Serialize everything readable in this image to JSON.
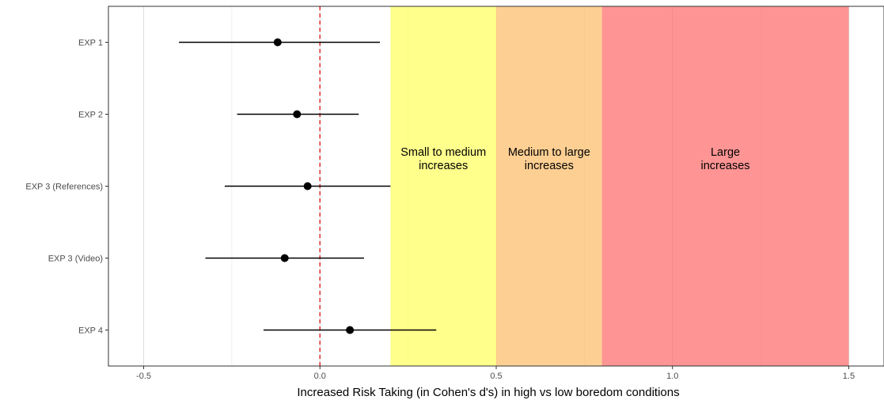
{
  "chart_data": {
    "type": "forest",
    "title": "",
    "xlabel": "Increased Risk Taking (in Cohen's d's) in high vs low boredom conditions",
    "ylabel": "",
    "xlim": [
      -0.6,
      1.6
    ],
    "x_ticks": [
      -0.5,
      0.0,
      0.5,
      1.0,
      1.5
    ],
    "x_tick_labels": [
      "-0.5",
      "0.0",
      "0.5",
      "1.0",
      "1.5"
    ],
    "grid": "vertical",
    "reference_line": {
      "x": 0,
      "color": "#dd2222",
      "style": "dashed"
    },
    "categories": [
      "EXP 1",
      "EXP 2",
      "EXP 3 (References)",
      "EXP 3 (Video)",
      "EXP 4"
    ],
    "points": [
      {
        "label": "EXP 1",
        "estimate": -0.12,
        "lower": -0.4,
        "upper": 0.17
      },
      {
        "label": "EXP 2",
        "estimate": -0.065,
        "lower": -0.235,
        "upper": 0.11
      },
      {
        "label": "EXP 3 (References)",
        "estimate": -0.035,
        "lower": -0.27,
        "upper": 0.2
      },
      {
        "label": "EXP 3 (Video)",
        "estimate": -0.1,
        "lower": -0.325,
        "upper": 0.125
      },
      {
        "label": "EXP 4",
        "estimate": 0.085,
        "lower": -0.16,
        "upper": 0.33
      }
    ],
    "bands": [
      {
        "label_lines": [
          "Small to medium",
          "increases"
        ],
        "from": 0.2,
        "to": 0.5,
        "color": "#ffff66",
        "opacity": 0.75
      },
      {
        "label_lines": [
          "Medium to large",
          "increases"
        ],
        "from": 0.5,
        "to": 0.8,
        "color": "#fdbf6f",
        "opacity": 0.75
      },
      {
        "label_lines": [
          "Large",
          "increases"
        ],
        "from": 0.8,
        "to": 1.5,
        "color": "#ff6666",
        "opacity": 0.7
      }
    ]
  }
}
